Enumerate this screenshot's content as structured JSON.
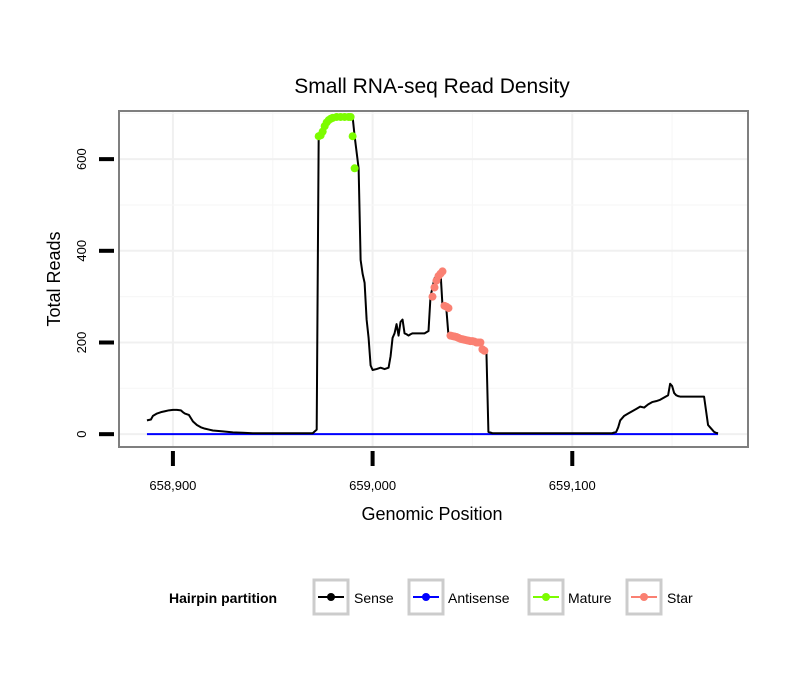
{
  "chart_data": {
    "type": "line",
    "title": "Small RNA-seq Read Density",
    "xlabel": "Genomic Position",
    "ylabel": "Total Reads",
    "xlim": [
      658873,
      659188
    ],
    "ylim": [
      -28,
      705
    ],
    "x_ticks": [
      658900,
      659000,
      659100
    ],
    "x_tick_labels": [
      "658,900",
      "659,000",
      "659,100"
    ],
    "y_ticks": [
      0,
      200,
      400,
      600
    ],
    "y_tick_labels": [
      "0",
      "200",
      "400",
      "600"
    ],
    "grid": true,
    "legend": {
      "title": "Hairpin partition",
      "position": "bottom",
      "entries": [
        {
          "label": "Sense",
          "color": "#000000"
        },
        {
          "label": "Antisense",
          "color": "#0000ff"
        },
        {
          "label": "Mature",
          "color": "#7cfc00"
        },
        {
          "label": "Star",
          "color": "#fa8072"
        }
      ]
    },
    "series": [
      {
        "name": "Sense",
        "color": "#000000",
        "style": "line",
        "x": [
          658887,
          658889,
          658890,
          658892,
          658894,
          658896,
          658898,
          658900,
          658902,
          658904,
          658905,
          658906,
          658908,
          658909,
          658910,
          658912,
          658914,
          658916,
          658918,
          658920,
          658925,
          658930,
          658935,
          658940,
          658945,
          658950,
          658960,
          658970,
          658972,
          658973,
          658974,
          658976,
          658978,
          658980,
          658982,
          658984,
          658986,
          658988,
          658989,
          658990,
          658991,
          658993,
          658994,
          658995,
          658996,
          658997,
          658998,
          658999,
          659000,
          659002,
          659004,
          659006,
          659008,
          659009,
          659010,
          659011,
          659012,
          659013,
          659014,
          659015,
          659016,
          659017,
          659018,
          659019,
          659020,
          659022,
          659024,
          659026,
          659028,
          659029,
          659030,
          659031,
          659032,
          659033,
          659034,
          659035,
          659036,
          659037,
          659038,
          659039,
          659040,
          659042,
          659044,
          659046,
          659048,
          659050,
          659052,
          659054,
          659055,
          659056,
          659057,
          659058,
          659060,
          659080,
          659100,
          659120,
          659122,
          659123,
          659124,
          659126,
          659128,
          659130,
          659132,
          659134,
          659136,
          659138,
          659140,
          659142,
          659144,
          659146,
          659148,
          659149,
          659150,
          659151,
          659152,
          659153,
          659154,
          659156,
          659158,
          659160,
          659162,
          659164,
          659166,
          659168,
          659169,
          659170,
          659171,
          659172,
          659173
        ],
        "y": [
          30,
          32,
          40,
          45,
          48,
          50,
          52,
          53,
          53,
          52,
          48,
          45,
          42,
          35,
          28,
          20,
          15,
          12,
          10,
          8,
          6,
          4,
          3,
          2,
          2,
          2,
          2,
          2,
          10,
          650,
          660,
          670,
          685,
          690,
          692,
          692,
          692,
          692,
          692,
          692,
          650,
          580,
          380,
          350,
          330,
          250,
          210,
          150,
          140,
          142,
          145,
          142,
          145,
          170,
          210,
          220,
          240,
          215,
          245,
          250,
          220,
          218,
          215,
          218,
          220,
          220,
          220,
          220,
          225,
          300,
          320,
          340,
          345,
          350,
          355,
          280,
          275,
          270,
          215,
          213,
          212,
          210,
          207,
          205,
          203,
          203,
          200,
          200,
          185,
          183,
          180,
          5,
          2,
          2,
          2,
          2,
          5,
          15,
          30,
          40,
          45,
          50,
          55,
          60,
          58,
          65,
          70,
          72,
          75,
          80,
          85,
          110,
          105,
          90,
          85,
          83,
          82,
          82,
          82,
          82,
          82,
          82,
          82,
          20,
          15,
          10,
          5,
          3,
          2
        ]
      },
      {
        "name": "Antisense",
        "color": "#0000ff",
        "style": "line",
        "x": [
          658887,
          659173
        ],
        "y": [
          0,
          0
        ]
      },
      {
        "name": "Mature",
        "color": "#7cfc00",
        "style": "points",
        "x": [
          658973,
          658974,
          658975,
          658976,
          658977,
          658978,
          658979,
          658980,
          658982,
          658984,
          658986,
          658988,
          658989,
          658990,
          658991
        ],
        "y": [
          650,
          652,
          660,
          672,
          680,
          685,
          688,
          690,
          692,
          692,
          692,
          692,
          692,
          650,
          580
        ]
      },
      {
        "name": "Star",
        "color": "#fa8072",
        "style": "points",
        "x": [
          659030,
          659031,
          659032,
          659033,
          659034,
          659035,
          659036,
          659037,
          659038,
          659039,
          659040,
          659041,
          659042,
          659043,
          659044,
          659045,
          659046,
          659047,
          659048,
          659049,
          659050,
          659051,
          659052,
          659053,
          659054,
          659055,
          659056
        ],
        "y": [
          300,
          320,
          335,
          345,
          350,
          355,
          280,
          278,
          275,
          215,
          214,
          213,
          212,
          210,
          208,
          207,
          206,
          205,
          204,
          203,
          203,
          202,
          200,
          200,
          200,
          185,
          182
        ]
      }
    ]
  }
}
